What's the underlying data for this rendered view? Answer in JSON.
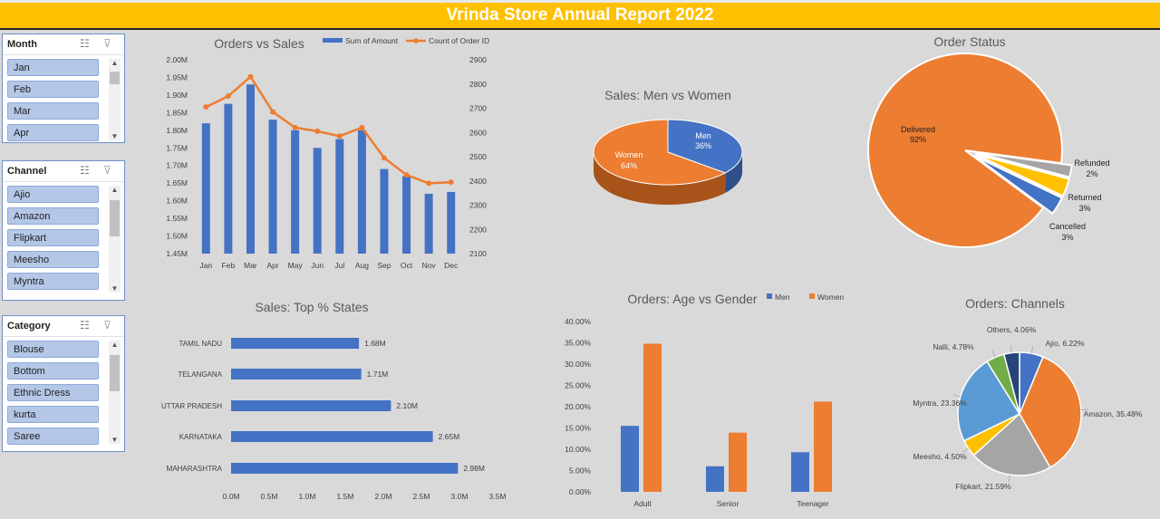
{
  "title": "Vrinda Store Annual Report 2022",
  "colors": {
    "blue": "#4472c4",
    "orange": "#ed7d31",
    "gray": "#a5a5a5",
    "yellow": "#ffc000",
    "lightblue": "#5b9bd5",
    "green": "#70ad47",
    "navy": "#264478",
    "titlebar": "#ffc000"
  },
  "slicers": [
    {
      "name": "Month",
      "items": [
        "Jan",
        "Feb",
        "Mar",
        "Apr"
      ]
    },
    {
      "name": "Channel",
      "items": [
        "Ajio",
        "Amazon",
        "Flipkart",
        "Meesho",
        "Myntra"
      ]
    },
    {
      "name": "Category",
      "items": [
        "Blouse",
        "Bottom",
        "Ethnic Dress",
        "kurta",
        "Saree"
      ]
    }
  ],
  "chart_data": [
    {
      "id": "orders_vs_sales",
      "type": "bar+line",
      "title": "Orders vs Sales",
      "categories": [
        "Jan",
        "Feb",
        "Mar",
        "Apr",
        "May",
        "Jun",
        "Jul",
        "Aug",
        "Sep",
        "Oct",
        "Nov",
        "Dec"
      ],
      "series": [
        {
          "name": "Sum of Amount",
          "type": "bar",
          "axis": "left",
          "values": [
            1.82,
            1.875,
            1.93,
            1.83,
            1.8,
            1.75,
            1.775,
            1.8,
            1.69,
            1.67,
            1.62,
            1.625
          ]
        },
        {
          "name": "Count of Order ID",
          "type": "line",
          "axis": "right",
          "values": [
            2705,
            2750,
            2830,
            2685,
            2620,
            2605,
            2585,
            2620,
            2495,
            2425,
            2390,
            2395
          ]
        }
      ],
      "left_ticks": [
        "1.45M",
        "1.50M",
        "1.55M",
        "1.60M",
        "1.65M",
        "1.70M",
        "1.75M",
        "1.80M",
        "1.85M",
        "1.90M",
        "1.95M",
        "2.00M"
      ],
      "right_ticks": [
        "2100",
        "2200",
        "2300",
        "2400",
        "2500",
        "2600",
        "2700",
        "2800",
        "2900"
      ],
      "ylim_left": [
        1.45,
        2.0
      ],
      "ylim_right": [
        2100,
        2900
      ],
      "legend": "top-right"
    },
    {
      "id": "men_vs_women",
      "type": "pie",
      "title": "Sales: Men vs Women",
      "slices": [
        {
          "label": "Men",
          "pct": "36%",
          "value": 36
        },
        {
          "label": "Women",
          "pct": "64%",
          "value": 64
        }
      ]
    },
    {
      "id": "order_status",
      "type": "pie",
      "title": "Order Status",
      "slices": [
        {
          "label": "Delivered",
          "pct": "92%",
          "value": 92
        },
        {
          "label": "Refunded",
          "pct": "2%",
          "value": 2
        },
        {
          "label": "Returned",
          "pct": "3%",
          "value": 3
        },
        {
          "label": "Cancelled",
          "pct": "3%",
          "value": 3
        }
      ]
    },
    {
      "id": "top_states",
      "type": "bar",
      "orientation": "horizontal",
      "title": "Sales: Top % States",
      "categories": [
        "TAMIL NADU",
        "TELANGANA",
        "UTTAR PRADESH",
        "KARNATAKA",
        "MAHARASHTRA"
      ],
      "values": [
        1.68,
        1.71,
        2.1,
        2.65,
        2.98
      ],
      "labels": [
        "1.68M",
        "1.71M",
        "2.10M",
        "2.65M",
        "2.98M"
      ],
      "ticks": [
        "0.0M",
        "0.5M",
        "1.0M",
        "1.5M",
        "2.0M",
        "2.5M",
        "3.0M",
        "3.5M"
      ],
      "xlim": [
        0,
        3.5
      ]
    },
    {
      "id": "age_vs_gender",
      "type": "bar",
      "title": "Orders: Age vs Gender",
      "categories": [
        "Adult",
        "Senior",
        "Teenager"
      ],
      "series": [
        {
          "name": "Men",
          "values": [
            15.5,
            6.0,
            9.3
          ]
        },
        {
          "name": "Women",
          "values": [
            34.8,
            13.9,
            21.2
          ]
        }
      ],
      "ticks": [
        "0.00%",
        "5.00%",
        "10.00%",
        "15.00%",
        "20.00%",
        "25.00%",
        "30.00%",
        "35.00%",
        "40.00%"
      ],
      "ylim": [
        0,
        40
      ],
      "legend": "top"
    },
    {
      "id": "channels",
      "type": "pie",
      "title": "Orders: Channels",
      "slices": [
        {
          "label": "Ajio, 6.22%",
          "value": 6.22
        },
        {
          "label": "Amazon, 35.48%",
          "value": 35.48
        },
        {
          "label": "Flipkart, 21.59%",
          "value": 21.59
        },
        {
          "label": "Meesho, 4.50%",
          "value": 4.5
        },
        {
          "label": "Myntra, 23.36%",
          "value": 23.36
        },
        {
          "label": "Nalli, 4.78%",
          "value": 4.78
        },
        {
          "label": "Others, 4.06%",
          "value": 4.06
        }
      ]
    }
  ]
}
